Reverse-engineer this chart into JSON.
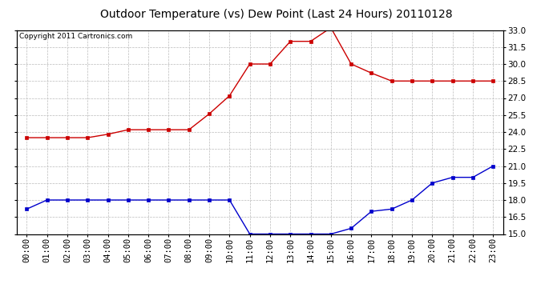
{
  "title": "Outdoor Temperature (vs) Dew Point (Last 24 Hours) 20110128",
  "copyright": "Copyright 2011 Cartronics.com",
  "x_labels": [
    "00:00",
    "01:00",
    "02:00",
    "03:00",
    "04:00",
    "05:00",
    "06:00",
    "07:00",
    "08:00",
    "09:00",
    "10:00",
    "11:00",
    "12:00",
    "13:00",
    "14:00",
    "15:00",
    "16:00",
    "17:00",
    "18:00",
    "19:00",
    "20:00",
    "21:00",
    "22:00",
    "23:00"
  ],
  "temp_data": [
    23.5,
    23.5,
    23.5,
    23.5,
    23.8,
    24.2,
    24.2,
    24.2,
    24.2,
    25.6,
    27.2,
    30.0,
    30.0,
    32.0,
    32.0,
    33.2,
    30.0,
    29.2,
    28.5,
    28.5,
    28.5,
    28.5,
    28.5,
    28.5
  ],
  "dew_data": [
    17.2,
    18.0,
    18.0,
    18.0,
    18.0,
    18.0,
    18.0,
    18.0,
    18.0,
    18.0,
    18.0,
    15.0,
    15.0,
    15.0,
    15.0,
    15.0,
    15.5,
    17.0,
    17.2,
    18.0,
    19.5,
    20.0,
    20.0,
    21.0
  ],
  "temp_color": "#cc0000",
  "dew_color": "#0000cc",
  "ylim_min": 15.0,
  "ylim_max": 33.0,
  "yticks": [
    15.0,
    16.5,
    18.0,
    19.5,
    21.0,
    22.5,
    24.0,
    25.5,
    27.0,
    28.5,
    30.0,
    31.5,
    33.0
  ],
  "bg_color": "#ffffff",
  "grid_color": "#bbbbbb",
  "title_fontsize": 10,
  "copyright_fontsize": 6.5,
  "tick_label_fontsize": 7.5
}
